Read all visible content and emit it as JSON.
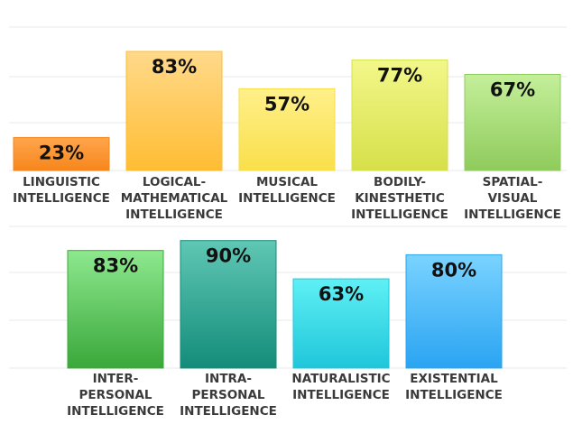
{
  "chart_data": [
    {
      "type": "bar",
      "categories": [
        "LINGUISTIC\nINTELLIGENCE",
        "LOGICAL-\nMATHEMATICAL\nINTELLIGENCE",
        "MUSICAL\nINTELLIGENCE",
        "BODILY-\nKINESTHETIC\nINTELLIGENCE",
        "SPATIAL-\nVISUAL\nINTELLIGENCE"
      ],
      "values": [
        23,
        83,
        57,
        77,
        67
      ],
      "data_labels": [
        "23%",
        "83%",
        "57%",
        "77%",
        "67%"
      ],
      "colors": [
        [
          "#ffa64d",
          "#f7861b"
        ],
        [
          "#ffd98a",
          "#ffbd33"
        ],
        [
          "#fff08a",
          "#f9df4a"
        ],
        [
          "#f3f78a",
          "#d6e049"
        ],
        [
          "#c4ef9a",
          "#8fcb5c"
        ]
      ],
      "ylim": [
        0,
        100
      ],
      "grid": true
    },
    {
      "type": "bar",
      "categories": [
        "INTER-\nPERSONAL\nINTELLIGENCE",
        "INTRA-\nPERSONAL\nINTELLIGENCE",
        "NATURALISTIC\nINTELLIGENCE",
        "EXISTENTIAL\nINTELLIGENCE"
      ],
      "values": [
        83,
        90,
        63,
        80
      ],
      "data_labels": [
        "83%",
        "90%",
        "63%",
        "80%"
      ],
      "colors": [
        [
          "#8ee88e",
          "#3aa83a"
        ],
        [
          "#5fc7b4",
          "#148c7a"
        ],
        [
          "#5ff0f5",
          "#1fc6da"
        ],
        [
          "#7ad3ff",
          "#2aa4f2"
        ]
      ],
      "ylim": [
        0,
        100
      ],
      "grid": true
    }
  ]
}
